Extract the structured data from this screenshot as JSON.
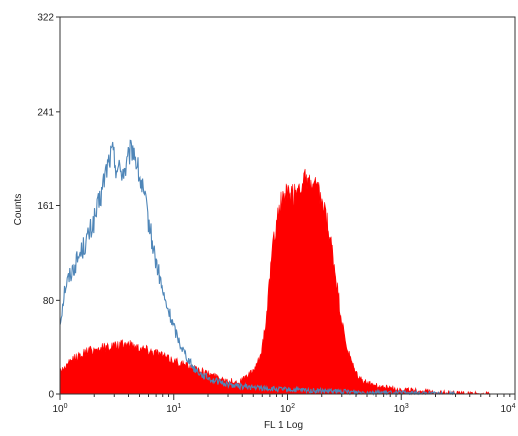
{
  "chart_data": {
    "type": "area",
    "title": "",
    "xlabel": "FL 1 Log",
    "ylabel": "Counts",
    "x_scale": "log",
    "xlim": [
      1,
      10000
    ],
    "ylim": [
      0,
      322
    ],
    "yticks": [
      "0",
      "80",
      "161",
      "241",
      "322"
    ],
    "ytick_values": [
      0,
      80,
      161,
      241,
      322
    ],
    "xticks": [
      {
        "value": 1,
        "base": "10",
        "exp": "0"
      },
      {
        "value": 10,
        "base": "10",
        "exp": "1"
      },
      {
        "value": 100,
        "base": "10",
        "exp": "2"
      },
      {
        "value": 1000,
        "base": "10",
        "exp": "3"
      },
      {
        "value": 10000,
        "base": "10",
        "exp": "4"
      }
    ],
    "grid": false,
    "legend": "none",
    "colors": {
      "filled": "#ff0000",
      "outline": "#4f86b8",
      "axis": "#333333"
    },
    "series": [
      {
        "style": "outline",
        "points": [
          [
            1.0,
            60
          ],
          [
            1.1,
            90
          ],
          [
            1.2,
            100
          ],
          [
            1.35,
            110
          ],
          [
            1.5,
            120
          ],
          [
            1.7,
            130
          ],
          [
            1.9,
            142
          ],
          [
            2.1,
            155
          ],
          [
            2.3,
            170
          ],
          [
            2.5,
            188
          ],
          [
            2.7,
            200
          ],
          [
            2.9,
            207
          ],
          [
            3.1,
            195
          ],
          [
            3.3,
            192
          ],
          [
            3.5,
            190
          ],
          [
            3.8,
            192
          ],
          [
            4.1,
            205
          ],
          [
            4.4,
            210
          ],
          [
            4.7,
            198
          ],
          [
            5.0,
            185
          ],
          [
            5.3,
            175
          ],
          [
            5.7,
            160
          ],
          [
            6.2,
            140
          ],
          [
            6.8,
            118
          ],
          [
            7.5,
            100
          ],
          [
            8.3,
            80
          ],
          [
            9.2,
            68
          ],
          [
            10.2,
            55
          ],
          [
            11.5,
            42
          ],
          [
            13,
            32
          ],
          [
            15,
            22
          ],
          [
            18,
            16
          ],
          [
            22,
            12
          ],
          [
            28,
            9
          ],
          [
            35,
            7
          ],
          [
            45,
            6
          ],
          [
            60,
            5
          ],
          [
            80,
            4
          ],
          [
            110,
            3.5
          ],
          [
            150,
            3
          ],
          [
            200,
            2.5
          ],
          [
            300,
            2
          ],
          [
            500,
            1.5
          ],
          [
            800,
            1
          ],
          [
            1500,
            0.5
          ],
          [
            3000,
            0
          ]
        ]
      },
      {
        "style": "filled",
        "points": [
          [
            1.0,
            20
          ],
          [
            1.15,
            24
          ],
          [
            1.3,
            30
          ],
          [
            1.5,
            33
          ],
          [
            1.7,
            36
          ],
          [
            1.95,
            38
          ],
          [
            2.2,
            39
          ],
          [
            2.5,
            40
          ],
          [
            2.8,
            41
          ],
          [
            3.1,
            41
          ],
          [
            3.5,
            42
          ],
          [
            4.0,
            43
          ],
          [
            4.5,
            41
          ],
          [
            5.0,
            40
          ],
          [
            5.5,
            39
          ],
          [
            6.2,
            37
          ],
          [
            7.0,
            36
          ],
          [
            8.0,
            33
          ],
          [
            9.0,
            30
          ],
          [
            10.5,
            28
          ],
          [
            12.5,
            25
          ],
          [
            15,
            22
          ],
          [
            18,
            19
          ],
          [
            22,
            16
          ],
          [
            27,
            13
          ],
          [
            32,
            11
          ],
          [
            37,
            10
          ],
          [
            40,
            12
          ],
          [
            44,
            15
          ],
          [
            48,
            18
          ],
          [
            53,
            23
          ],
          [
            58,
            33
          ],
          [
            63,
            55
          ],
          [
            68,
            85
          ],
          [
            73,
            118
          ],
          [
            78,
            140
          ],
          [
            84,
            158
          ],
          [
            90,
            166
          ],
          [
            97,
            170
          ],
          [
            105,
            168
          ],
          [
            113,
            170
          ],
          [
            122,
            175
          ],
          [
            131,
            181
          ],
          [
            141,
            182
          ],
          [
            152,
            178
          ],
          [
            163,
            180
          ],
          [
            175,
            176
          ],
          [
            188,
            170
          ],
          [
            202,
            162
          ],
          [
            217,
            150
          ],
          [
            233,
            135
          ],
          [
            251,
            118
          ],
          [
            270,
            95
          ],
          [
            290,
            72
          ],
          [
            312,
            52
          ],
          [
            336,
            38
          ],
          [
            362,
            28
          ],
          [
            390,
            20
          ],
          [
            420,
            15
          ],
          [
            460,
            11
          ],
          [
            520,
            9
          ],
          [
            600,
            7
          ],
          [
            700,
            6
          ],
          [
            850,
            5
          ],
          [
            1000,
            4
          ],
          [
            1300,
            3
          ],
          [
            1800,
            2
          ],
          [
            2500,
            1
          ],
          [
            4000,
            0.5
          ],
          [
            6000,
            0
          ]
        ]
      }
    ]
  }
}
